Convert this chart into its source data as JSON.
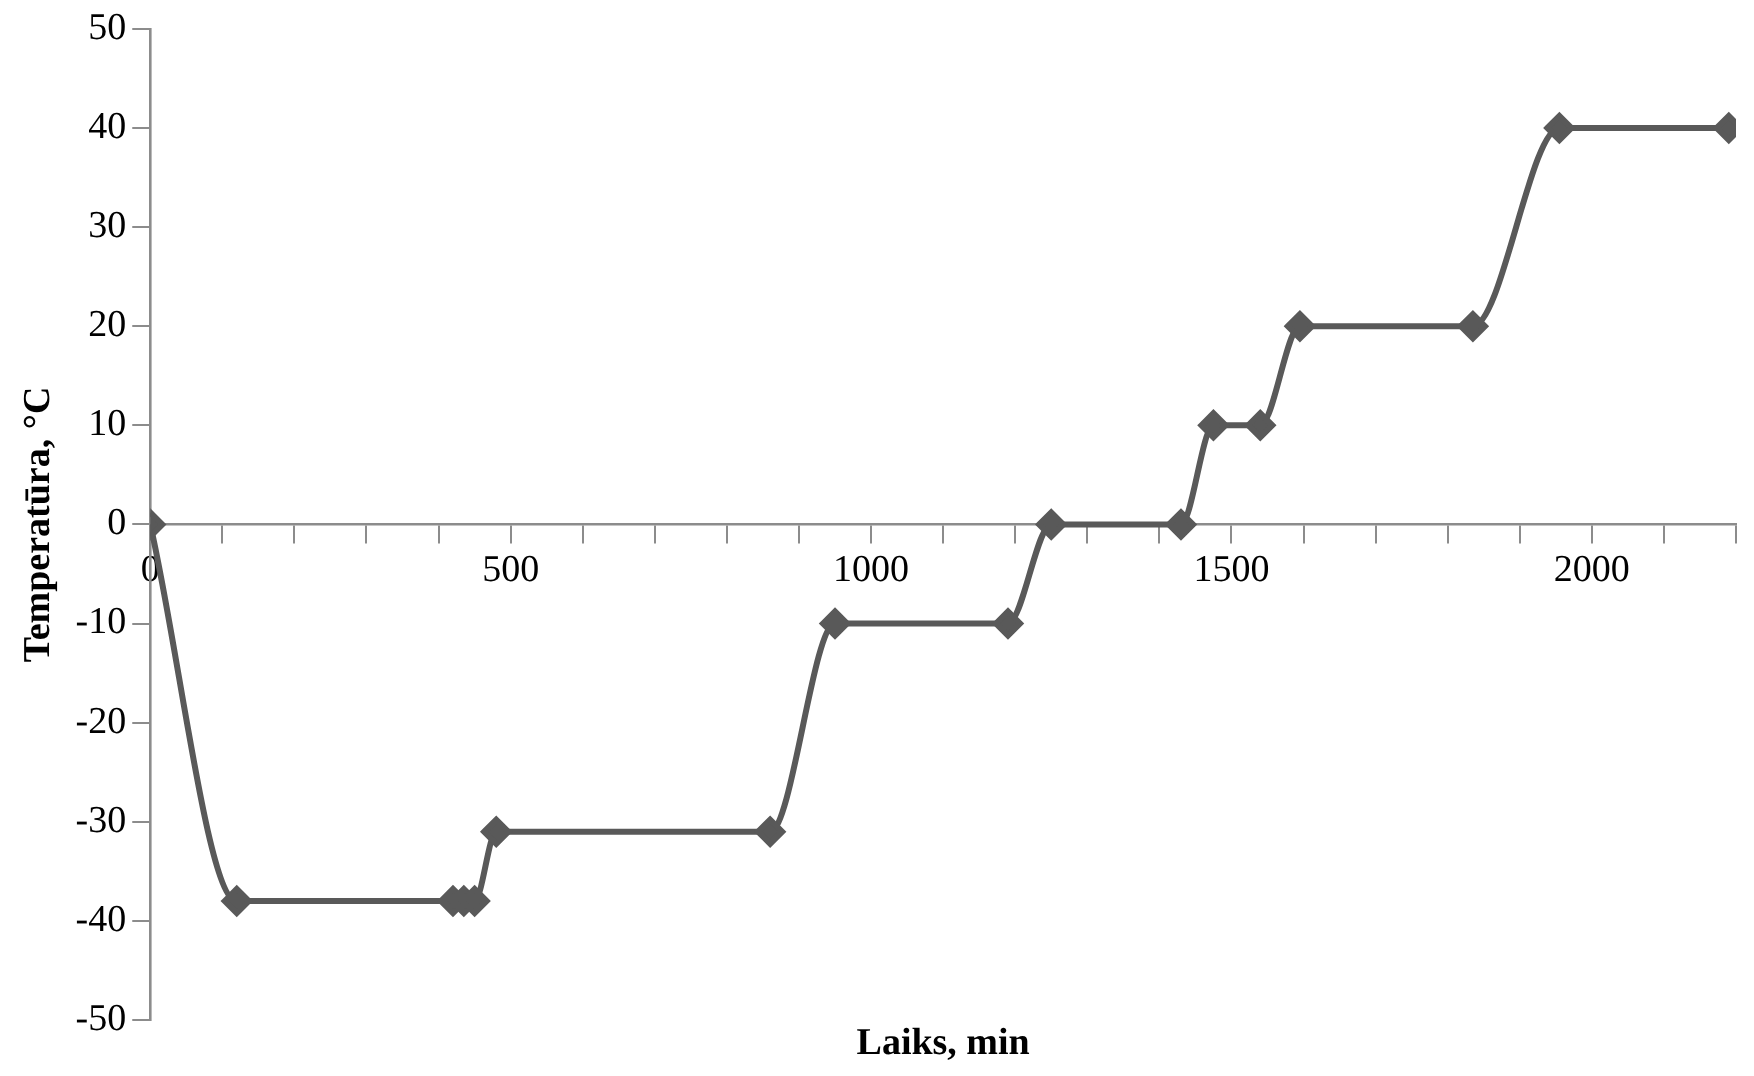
{
  "chart_data": {
    "type": "line",
    "xlabel": "Laiks, min",
    "ylabel": "Temperatūra, °C",
    "x": [
      0,
      120,
      420,
      435,
      450,
      480,
      860,
      950,
      1190,
      1250,
      1430,
      1475,
      1540,
      1595,
      1835,
      1955,
      2190
    ],
    "series": [
      {
        "color": "#595959",
        "values": [
          0,
          -38,
          -38,
          -38,
          -38,
          -31,
          -31,
          -10,
          -10,
          0,
          0,
          10,
          10,
          20,
          20,
          40,
          40
        ]
      }
    ],
    "xlim": [
      0,
      2200
    ],
    "xticks": [
      0,
      {
        "value": 100,
        "label": null
      },
      {
        "value": 200,
        "label": null
      },
      {
        "value": 300,
        "label": null
      },
      {
        "value": 400,
        "label": null
      },
      500,
      {
        "value": 600,
        "label": null
      },
      {
        "value": 700,
        "label": null
      },
      {
        "value": 800,
        "label": null
      },
      {
        "value": 900,
        "label": null
      },
      1000,
      {
        "value": 1100,
        "label": null
      },
      {
        "value": 1200,
        "label": null
      },
      {
        "value": 1300,
        "label": null
      },
      {
        "value": 1400,
        "label": null
      },
      1500,
      {
        "value": 1600,
        "label": null
      },
      {
        "value": 1700,
        "label": null
      },
      {
        "value": 1800,
        "label": null
      },
      {
        "value": 1900,
        "label": null
      },
      2000,
      {
        "value": 2100,
        "label": null
      },
      {
        "value": 2200,
        "label": null
      }
    ],
    "ylim": [
      -50,
      50
    ],
    "yticks": [
      -50,
      -40,
      -30,
      -20,
      -10,
      0,
      10,
      20,
      30,
      40,
      50
    ],
    "grid": false,
    "legend": false,
    "marker": "diamond",
    "line_style": "solid"
  }
}
